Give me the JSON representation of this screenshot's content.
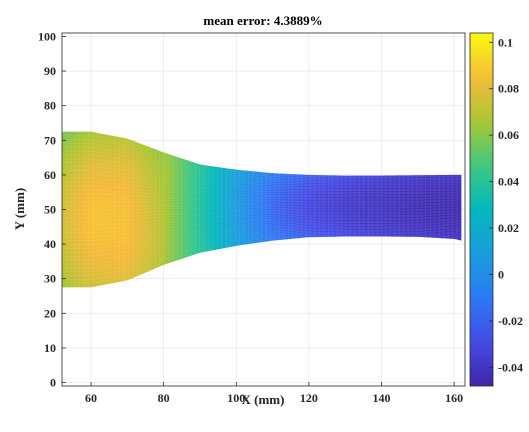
{
  "chart_data": {
    "type": "heatmap",
    "title": "mean error: 4.3889%",
    "xlabel": "X (mm)",
    "ylabel": "Y (mm)",
    "xlim": [
      52,
      163
    ],
    "ylim": [
      -1,
      101
    ],
    "xticks": [
      60,
      80,
      100,
      120,
      140,
      160
    ],
    "yticks": [
      0,
      10,
      20,
      30,
      40,
      50,
      60,
      70,
      80,
      90,
      100
    ],
    "grid": true,
    "colormap": "parula",
    "colorbar": {
      "range": [
        -0.048,
        0.104
      ],
      "ticks": [
        -0.04,
        -0.02,
        0,
        0.02,
        0.04,
        0.06,
        0.08,
        0.1
      ],
      "tick_labels": [
        "-0.04",
        "-0.02",
        "0",
        "0.02",
        "0.04",
        "0.06",
        "0.08",
        "0.1"
      ],
      "placement": "right"
    },
    "domain_shape": {
      "x": [
        52,
        60,
        70,
        80,
        90,
        100,
        110,
        120,
        130,
        140,
        150,
        160,
        162
      ],
      "upper_y": [
        72.5,
        72.5,
        70.5,
        66.5,
        63,
        61.5,
        60.5,
        60,
        59.8,
        59.8,
        59.9,
        60,
        60
      ],
      "lower_y": [
        27.5,
        27.5,
        29.5,
        34,
        37.5,
        39.5,
        41,
        42,
        42.2,
        42.2,
        42.1,
        41.5,
        41
      ]
    },
    "field_profile": {
      "x": [
        52,
        60,
        70,
        80,
        90,
        100,
        110,
        120,
        130,
        140,
        150,
        160,
        162
      ],
      "center_value": [
        0.075,
        0.087,
        0.086,
        0.068,
        0.038,
        0.008,
        -0.018,
        -0.032,
        -0.038,
        -0.041,
        -0.044,
        -0.046,
        -0.046
      ],
      "edge_value": [
        0.06,
        0.07,
        0.075,
        0.065,
        0.04,
        0.012,
        -0.008,
        -0.022,
        -0.03,
        -0.035,
        -0.038,
        -0.04,
        -0.04
      ]
    }
  }
}
